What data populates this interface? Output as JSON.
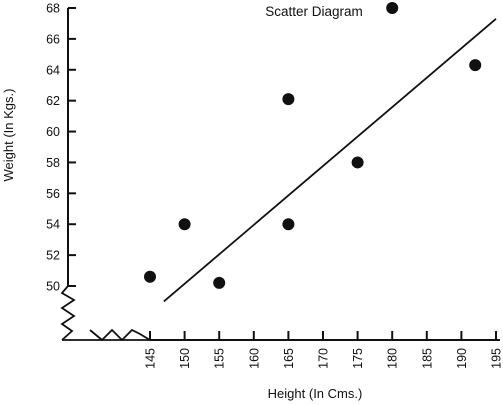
{
  "chart_data": {
    "type": "scatter",
    "title": "Scatter Diagram",
    "xlabel": "Height (In Cms.)",
    "ylabel": "Weight (In Kgs.)",
    "xlim": [
      140,
      195
    ],
    "ylim": [
      48,
      68
    ],
    "x_ticks": [
      145,
      150,
      155,
      160,
      165,
      170,
      175,
      180,
      185,
      190,
      195
    ],
    "y_ticks": [
      50,
      52,
      54,
      56,
      58,
      60,
      62,
      64,
      66,
      68
    ],
    "axis_break": true,
    "grid": false,
    "legend": "none",
    "points": [
      {
        "x": 145,
        "y": 50.6
      },
      {
        "x": 150,
        "y": 54
      },
      {
        "x": 155,
        "y": 50.2
      },
      {
        "x": 165,
        "y": 62.1
      },
      {
        "x": 165,
        "y": 54
      },
      {
        "x": 175,
        "y": 58
      },
      {
        "x": 180,
        "y": 68
      },
      {
        "x": 192,
        "y": 64.3
      }
    ],
    "trend_line": {
      "x": [
        147,
        195
      ],
      "y": [
        49,
        67.3
      ]
    },
    "colors": {
      "ink": "#111111",
      "background": "#ffffff"
    }
  }
}
